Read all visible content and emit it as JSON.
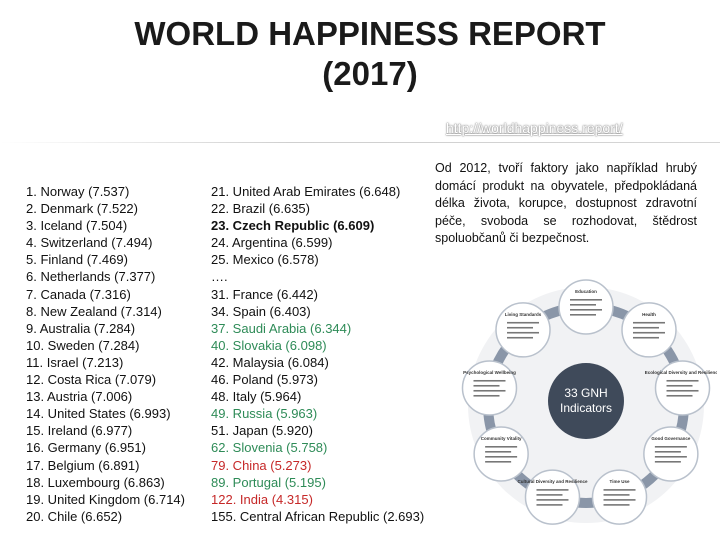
{
  "title_line1": "WORLD HAPPINESS REPORT",
  "title_line2": "(2017)",
  "link": "http://worldhappiness.report/",
  "ranking_left": [
    "1. Norway (7.537)",
    "2. Denmark (7.522)",
    "3. Iceland (7.504)",
    "4. Switzerland (7.494)",
    "5. Finland (7.469)",
    "6. Netherlands (7.377)",
    "7. Canada (7.316)",
    "8. New Zealand (7.314)",
    "9. Australia (7.284)",
    "10. Sweden (7.284)",
    "11. Israel (7.213)",
    "12. Costa Rica (7.079)",
    "13. Austria (7.006)",
    "14. United States (6.993)",
    "15. Ireland (6.977)",
    "16. Germany (6.951)",
    "17. Belgium (6.891)",
    "18. Luxembourg (6.863)",
    "19. United Kingdom (6.714)",
    "20. Chile (6.652)"
  ],
  "ranking_right": [
    {
      "text": "21. United Arab Emirates (6.648)",
      "color": "#111111",
      "bold": false
    },
    {
      "text": "22. Brazil (6.635)",
      "color": "#111111",
      "bold": false
    },
    {
      "text": "23. Czech Republic (6.609)",
      "color": "#111111",
      "bold": true
    },
    {
      "text": "24. Argentina (6.599)",
      "color": "#111111",
      "bold": false
    },
    {
      "text": "25. Mexico (6.578)",
      "color": "#111111",
      "bold": false
    },
    {
      "text": "….",
      "color": "#111111",
      "bold": false
    },
    {
      "text": "31. France (6.442)",
      "color": "#111111",
      "bold": false
    },
    {
      "text": "34. Spain (6.403)",
      "color": "#111111",
      "bold": false
    },
    {
      "text": "37. Saudi Arabia (6.344)",
      "color": "#2e8b57",
      "bold": false
    },
    {
      "text": "40. Slovakia (6.098)",
      "color": "#2e8b57",
      "bold": false
    },
    {
      "text": "42. Malaysia (6.084)",
      "color": "#111111",
      "bold": false
    },
    {
      "text": "46. Poland (5.973)",
      "color": "#111111",
      "bold": false
    },
    {
      "text": "48. Italy (5.964)",
      "color": "#111111",
      "bold": false
    },
    {
      "text": "49. Russia (5.963)",
      "color": "#2e8b57",
      "bold": false
    },
    {
      "text": "51. Japan (5.920)",
      "color": "#111111",
      "bold": false
    },
    {
      "text": "62. Slovenia (5.758)",
      "color": "#2e8b57",
      "bold": false
    },
    {
      "text": "79. China (5.273)",
      "color": "#c62828",
      "bold": false
    },
    {
      "text": "89. Portugal (5.195)",
      "color": "#2e8b57",
      "bold": false
    },
    {
      "text": "122. India (4.315)",
      "color": "#c62828",
      "bold": false
    },
    {
      "text": "155. Central African Republic (2.693)",
      "color": "#111111",
      "bold": false
    }
  ],
  "paragraph": "Od 2012, tvoří faktory jako například hrubý domácí produkt na obyvatele, předpokládaná délka života, korupce, dostupnost zdravotní péče, svoboda se rozhodovat, štědrost spoluobčanů či bezpečnost.",
  "diagram": {
    "center_line1": "33 GNH",
    "center_line2": "Indicators",
    "domains": [
      "Education",
      "Health",
      "Ecological Diversity and Resilience",
      "Good Governance",
      "Time Use",
      "Cultural Diversity and Resilience",
      "Community Vitality",
      "Psychological Wellbeing",
      "Living Standards"
    ],
    "center_color": "#3f4a5a"
  }
}
